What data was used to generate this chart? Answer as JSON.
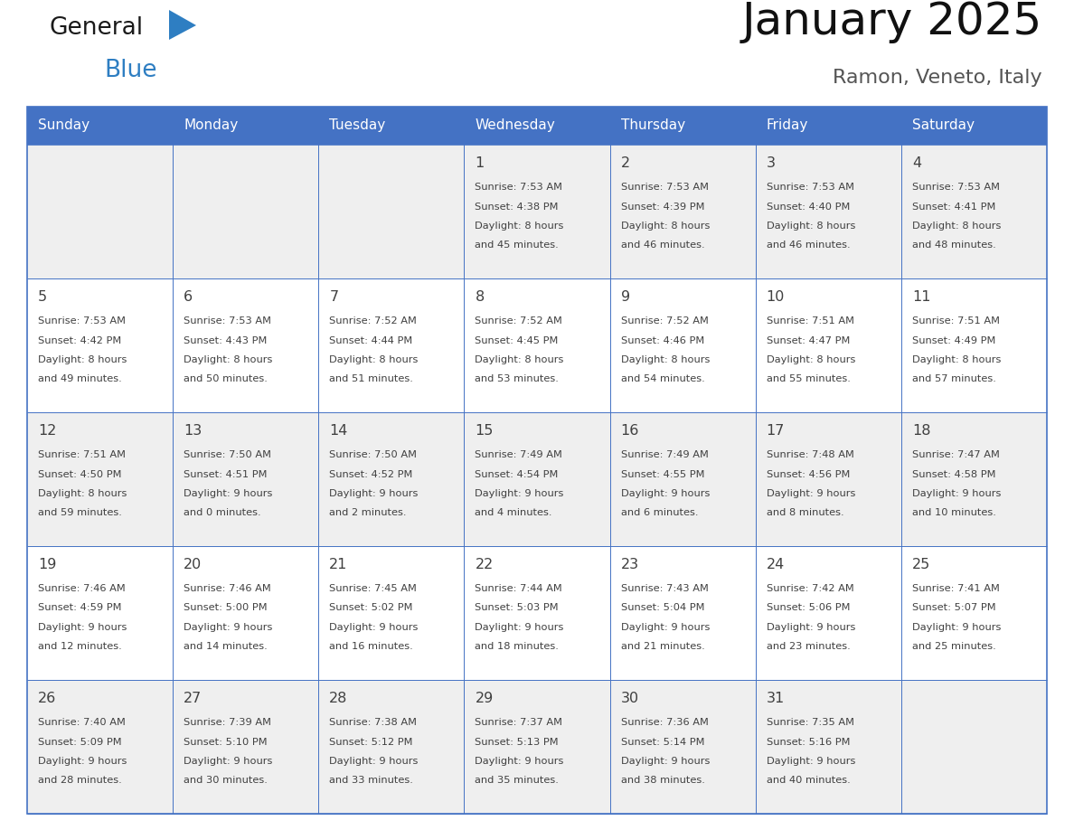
{
  "title": "January 2025",
  "subtitle": "Ramon, Veneto, Italy",
  "header_bg": "#4472C4",
  "header_text_color": "#FFFFFF",
  "day_names": [
    "Sunday",
    "Monday",
    "Tuesday",
    "Wednesday",
    "Thursday",
    "Friday",
    "Saturday"
  ],
  "odd_row_bg": "#EFEFEF",
  "even_row_bg": "#FFFFFF",
  "border_color": "#4472C4",
  "text_color": "#404040",
  "logo_general_color": "#1a1a1a",
  "logo_blue_color": "#2E7EC2",
  "calendar": [
    [
      {
        "day": "",
        "sunrise": "",
        "sunset": "",
        "daylight": ""
      },
      {
        "day": "",
        "sunrise": "",
        "sunset": "",
        "daylight": ""
      },
      {
        "day": "",
        "sunrise": "",
        "sunset": "",
        "daylight": ""
      },
      {
        "day": "1",
        "sunrise": "7:53 AM",
        "sunset": "4:38 PM",
        "daylight_h": "8 hours",
        "daylight_m": "and 45 minutes."
      },
      {
        "day": "2",
        "sunrise": "7:53 AM",
        "sunset": "4:39 PM",
        "daylight_h": "8 hours",
        "daylight_m": "and 46 minutes."
      },
      {
        "day": "3",
        "sunrise": "7:53 AM",
        "sunset": "4:40 PM",
        "daylight_h": "8 hours",
        "daylight_m": "and 46 minutes."
      },
      {
        "day": "4",
        "sunrise": "7:53 AM",
        "sunset": "4:41 PM",
        "daylight_h": "8 hours",
        "daylight_m": "and 48 minutes."
      }
    ],
    [
      {
        "day": "5",
        "sunrise": "7:53 AM",
        "sunset": "4:42 PM",
        "daylight_h": "8 hours",
        "daylight_m": "and 49 minutes."
      },
      {
        "day": "6",
        "sunrise": "7:53 AM",
        "sunset": "4:43 PM",
        "daylight_h": "8 hours",
        "daylight_m": "and 50 minutes."
      },
      {
        "day": "7",
        "sunrise": "7:52 AM",
        "sunset": "4:44 PM",
        "daylight_h": "8 hours",
        "daylight_m": "and 51 minutes."
      },
      {
        "day": "8",
        "sunrise": "7:52 AM",
        "sunset": "4:45 PM",
        "daylight_h": "8 hours",
        "daylight_m": "and 53 minutes."
      },
      {
        "day": "9",
        "sunrise": "7:52 AM",
        "sunset": "4:46 PM",
        "daylight_h": "8 hours",
        "daylight_m": "and 54 minutes."
      },
      {
        "day": "10",
        "sunrise": "7:51 AM",
        "sunset": "4:47 PM",
        "daylight_h": "8 hours",
        "daylight_m": "and 55 minutes."
      },
      {
        "day": "11",
        "sunrise": "7:51 AM",
        "sunset": "4:49 PM",
        "daylight_h": "8 hours",
        "daylight_m": "and 57 minutes."
      }
    ],
    [
      {
        "day": "12",
        "sunrise": "7:51 AM",
        "sunset": "4:50 PM",
        "daylight_h": "8 hours",
        "daylight_m": "and 59 minutes."
      },
      {
        "day": "13",
        "sunrise": "7:50 AM",
        "sunset": "4:51 PM",
        "daylight_h": "9 hours",
        "daylight_m": "and 0 minutes."
      },
      {
        "day": "14",
        "sunrise": "7:50 AM",
        "sunset": "4:52 PM",
        "daylight_h": "9 hours",
        "daylight_m": "and 2 minutes."
      },
      {
        "day": "15",
        "sunrise": "7:49 AM",
        "sunset": "4:54 PM",
        "daylight_h": "9 hours",
        "daylight_m": "and 4 minutes."
      },
      {
        "day": "16",
        "sunrise": "7:49 AM",
        "sunset": "4:55 PM",
        "daylight_h": "9 hours",
        "daylight_m": "and 6 minutes."
      },
      {
        "day": "17",
        "sunrise": "7:48 AM",
        "sunset": "4:56 PM",
        "daylight_h": "9 hours",
        "daylight_m": "and 8 minutes."
      },
      {
        "day": "18",
        "sunrise": "7:47 AM",
        "sunset": "4:58 PM",
        "daylight_h": "9 hours",
        "daylight_m": "and 10 minutes."
      }
    ],
    [
      {
        "day": "19",
        "sunrise": "7:46 AM",
        "sunset": "4:59 PM",
        "daylight_h": "9 hours",
        "daylight_m": "and 12 minutes."
      },
      {
        "day": "20",
        "sunrise": "7:46 AM",
        "sunset": "5:00 PM",
        "daylight_h": "9 hours",
        "daylight_m": "and 14 minutes."
      },
      {
        "day": "21",
        "sunrise": "7:45 AM",
        "sunset": "5:02 PM",
        "daylight_h": "9 hours",
        "daylight_m": "and 16 minutes."
      },
      {
        "day": "22",
        "sunrise": "7:44 AM",
        "sunset": "5:03 PM",
        "daylight_h": "9 hours",
        "daylight_m": "and 18 minutes."
      },
      {
        "day": "23",
        "sunrise": "7:43 AM",
        "sunset": "5:04 PM",
        "daylight_h": "9 hours",
        "daylight_m": "and 21 minutes."
      },
      {
        "day": "24",
        "sunrise": "7:42 AM",
        "sunset": "5:06 PM",
        "daylight_h": "9 hours",
        "daylight_m": "and 23 minutes."
      },
      {
        "day": "25",
        "sunrise": "7:41 AM",
        "sunset": "5:07 PM",
        "daylight_h": "9 hours",
        "daylight_m": "and 25 minutes."
      }
    ],
    [
      {
        "day": "26",
        "sunrise": "7:40 AM",
        "sunset": "5:09 PM",
        "daylight_h": "9 hours",
        "daylight_m": "and 28 minutes."
      },
      {
        "day": "27",
        "sunrise": "7:39 AM",
        "sunset": "5:10 PM",
        "daylight_h": "9 hours",
        "daylight_m": "and 30 minutes."
      },
      {
        "day": "28",
        "sunrise": "7:38 AM",
        "sunset": "5:12 PM",
        "daylight_h": "9 hours",
        "daylight_m": "and 33 minutes."
      },
      {
        "day": "29",
        "sunrise": "7:37 AM",
        "sunset": "5:13 PM",
        "daylight_h": "9 hours",
        "daylight_m": "and 35 minutes."
      },
      {
        "day": "30",
        "sunrise": "7:36 AM",
        "sunset": "5:14 PM",
        "daylight_h": "9 hours",
        "daylight_m": "and 38 minutes."
      },
      {
        "day": "31",
        "sunrise": "7:35 AM",
        "sunset": "5:16 PM",
        "daylight_h": "9 hours",
        "daylight_m": "and 40 minutes."
      },
      {
        "day": "",
        "sunrise": "",
        "sunset": "",
        "daylight_h": "",
        "daylight_m": ""
      }
    ]
  ]
}
